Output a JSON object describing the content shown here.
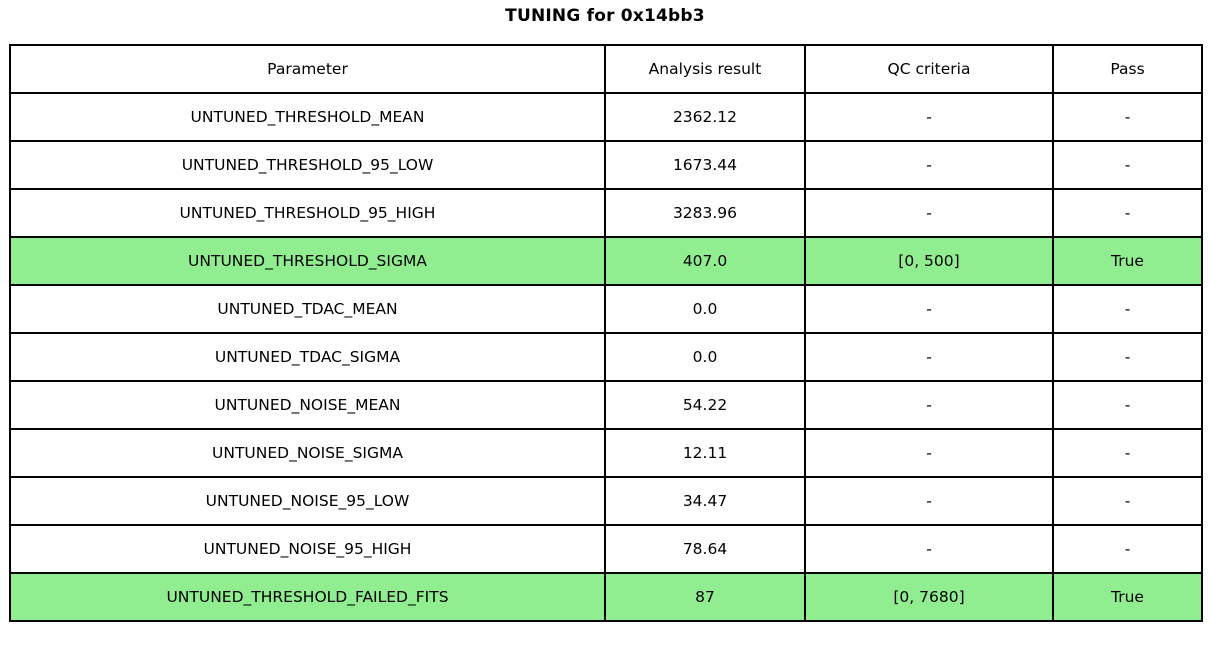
{
  "title": "TUNING for 0x14bb3",
  "colors": {
    "highlight_green": "#90ee90",
    "border": "#000000",
    "background": "#ffffff",
    "text": "#000000"
  },
  "chart_data": {
    "type": "table",
    "title": "TUNING for 0x14bb3",
    "columns": [
      "Parameter",
      "Analysis result",
      "QC criteria",
      "Pass"
    ],
    "rows": [
      [
        "UNTUNED_THRESHOLD_MEAN",
        "2362.12",
        "-",
        "-"
      ],
      [
        "UNTUNED_THRESHOLD_95_LOW",
        "1673.44",
        "-",
        "-"
      ],
      [
        "UNTUNED_THRESHOLD_95_HIGH",
        "3283.96",
        "-",
        "-"
      ],
      [
        "UNTUNED_THRESHOLD_SIGMA",
        "407.0",
        "[0, 500]",
        "True"
      ],
      [
        "UNTUNED_TDAC_MEAN",
        "0.0",
        "-",
        "-"
      ],
      [
        "UNTUNED_TDAC_SIGMA",
        "0.0",
        "-",
        "-"
      ],
      [
        "UNTUNED_NOISE_MEAN",
        "54.22",
        "-",
        "-"
      ],
      [
        "UNTUNED_NOISE_SIGMA",
        "12.11",
        "-",
        "-"
      ],
      [
        "UNTUNED_NOISE_95_LOW",
        "34.47",
        "-",
        "-"
      ],
      [
        "UNTUNED_NOISE_95_HIGH",
        "78.64",
        "-",
        "-"
      ],
      [
        "UNTUNED_THRESHOLD_FAILED_FITS",
        "87",
        "[0, 7680]",
        "True"
      ]
    ],
    "highlighted_row_indices": [
      3,
      10
    ],
    "highlight_color": "#90ee90",
    "layout": {
      "grid": "full-borders",
      "header_row": true
    }
  }
}
